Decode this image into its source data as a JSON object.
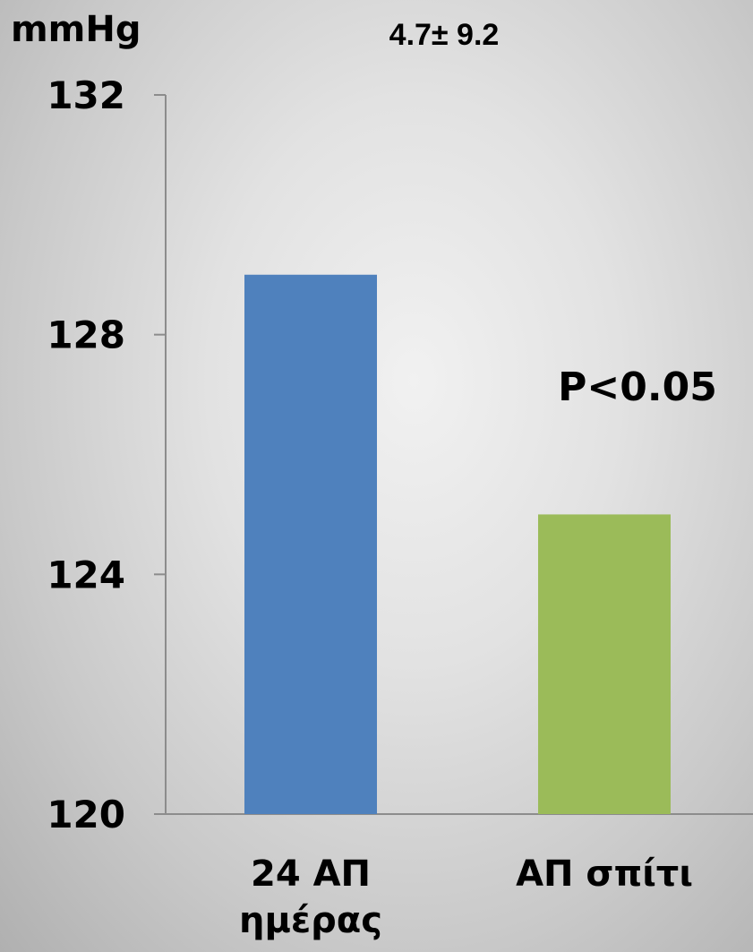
{
  "chart_data": {
    "type": "bar",
    "categories": [
      {
        "lines": [
          "24 ΑΠ",
          "ημέρας"
        ]
      },
      {
        "lines": [
          "ΑΠ σπίτι"
        ]
      }
    ],
    "values": [
      129.0,
      125.0
    ],
    "colors": [
      "#4f81bd",
      "#9bbb59"
    ],
    "ylabel": "mmHg",
    "ylim": [
      120,
      132
    ],
    "yticks": [
      120,
      124,
      128,
      132
    ],
    "grid": false,
    "annotations": {
      "difference": "4.7± 9.2",
      "p_value": "P<0.05"
    }
  }
}
